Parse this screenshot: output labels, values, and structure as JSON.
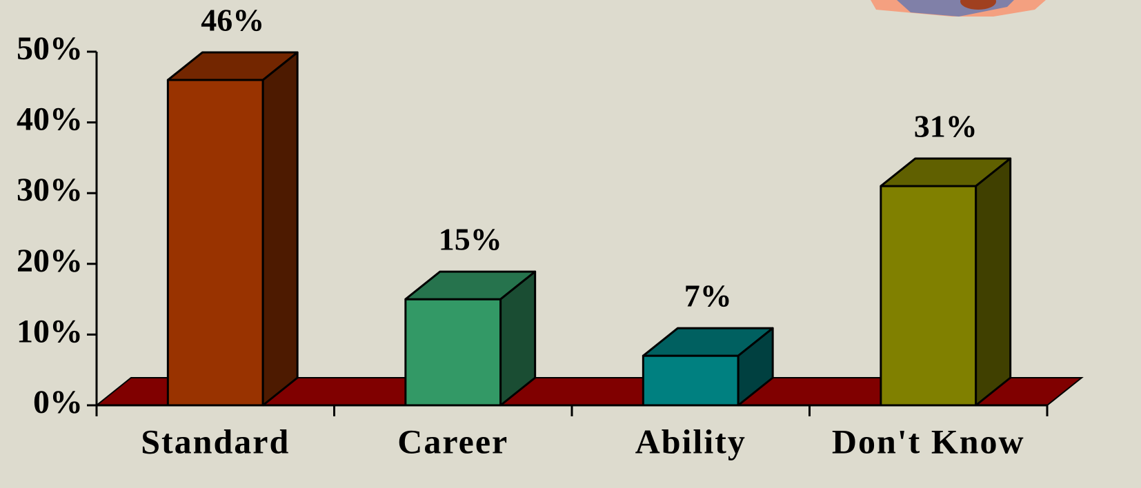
{
  "chart_data": {
    "type": "bar3d",
    "categories": [
      "Standard",
      "Career",
      "Ability",
      "Don't Know"
    ],
    "values": [
      46,
      15,
      7,
      31
    ],
    "value_labels": [
      "46%",
      "15%",
      "7%",
      "31%"
    ],
    "colors": [
      "#993300",
      "#339966",
      "#008080",
      "#808000"
    ],
    "floor_color": "#800000",
    "ylim": [
      0,
      50
    ],
    "yticks": [
      {
        "value": 0,
        "label": "0%"
      },
      {
        "value": 10,
        "label": "10%"
      },
      {
        "value": 20,
        "label": "20%"
      },
      {
        "value": 30,
        "label": "30%"
      },
      {
        "value": 40,
        "label": "40%"
      },
      {
        "value": 50,
        "label": "50%"
      }
    ]
  }
}
